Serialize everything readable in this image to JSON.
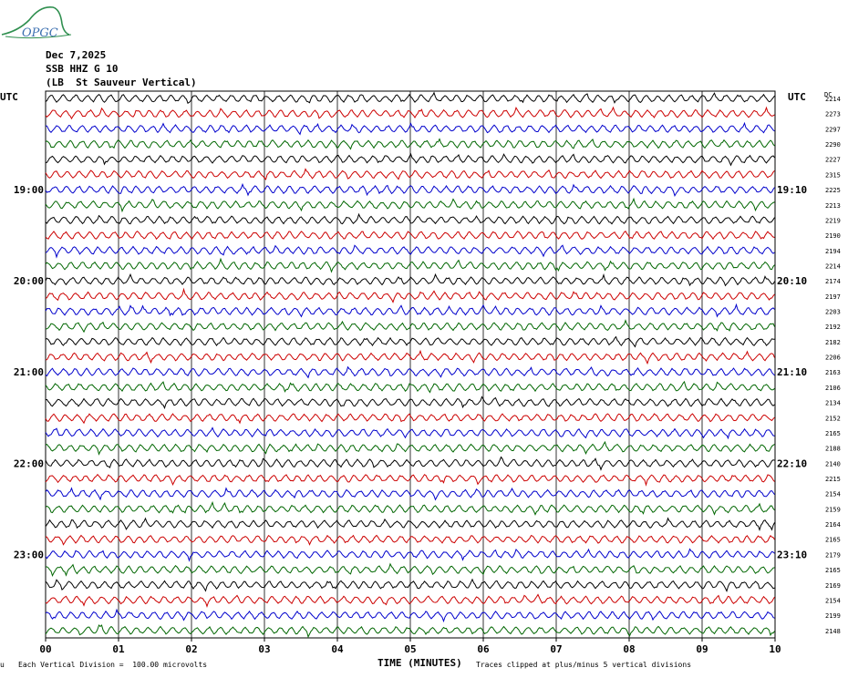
{
  "logo_text": "OPGC",
  "header": {
    "date": "Dec 7,2025",
    "channel": "SSB HHZ G 10",
    "station": "(LB  St Sauveur Vertical)"
  },
  "labels": {
    "left_utc": "UTC",
    "right_utc": "UTC",
    "dc": "DC",
    "xlabel": "TIME (MINUTES)",
    "footer_scale": "Each Vertical Division =  100.00 microvolts",
    "footer_clip": "Traces clipped at plus/minus 5 vertical divisions",
    "footer_mark": "u"
  },
  "colors": {
    "trace_cycle": [
      "#000000",
      "#cc0000",
      "#0000cc",
      "#006600"
    ],
    "grid": "#000000",
    "logo": "#2f8f4f"
  },
  "chart_data": {
    "type": "line",
    "subtype": "helicorder",
    "x_ticks": [
      "00",
      "01",
      "02",
      "03",
      "04",
      "05",
      "06",
      "07",
      "08",
      "09",
      "10"
    ],
    "xlim": [
      0,
      10
    ],
    "xlabel": "TIME (MINUTES)",
    "rows_per_hour": 6,
    "left_time_labels": [
      {
        "row": 6,
        "text": "19:00"
      },
      {
        "row": 12,
        "text": "20:00"
      },
      {
        "row": 18,
        "text": "21:00"
      },
      {
        "row": 24,
        "text": "22:00"
      },
      {
        "row": 30,
        "text": "23:00"
      }
    ],
    "right_time_labels": [
      {
        "row": 6,
        "text": "19:10"
      },
      {
        "row": 12,
        "text": "20:10"
      },
      {
        "row": 18,
        "text": "21:10"
      },
      {
        "row": 24,
        "text": "22:10"
      },
      {
        "row": 30,
        "text": "23:10"
      }
    ],
    "dc_offsets": [
      "2214",
      "2273",
      "2297",
      "2290",
      "2227",
      "2315",
      "2225",
      "2213",
      "2219",
      "2190",
      "2194",
      "2214",
      "2174",
      "2197",
      "2203",
      "2192",
      "2182",
      "2206",
      "2163",
      "2106",
      "2134",
      "2152",
      "2165",
      "2188",
      "2140",
      "2215",
      "2154",
      "2159",
      "2164",
      "2165",
      "2179",
      "2165",
      "2169",
      "2154",
      "2199",
      "2148"
    ]
  }
}
